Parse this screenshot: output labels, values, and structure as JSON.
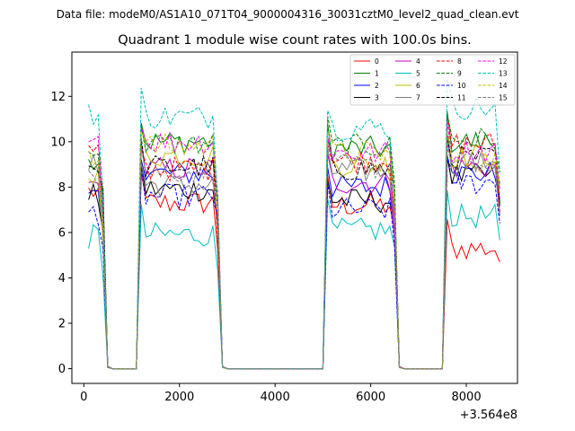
{
  "suptitle": "Data file: modeM0/AS1A10_071T04_9000004316_30031cztM0_level2_quad_clean.evt",
  "chart_data": {
    "type": "line",
    "title": "Quadrant 1 module wise count rates with 100.0s bins.",
    "xlabel": "",
    "ylabel": "",
    "x_offset_label": "+3.564e8",
    "xlim": [
      -250,
      9070
    ],
    "ylim": [
      -0.65,
      13.95
    ],
    "xticks": [
      0,
      2000,
      4000,
      6000,
      8000
    ],
    "xtick_labels": [
      "0",
      "2000",
      "4000",
      "6000",
      "8000"
    ],
    "yticks": [
      0,
      2,
      4,
      6,
      8,
      10,
      12
    ],
    "ytick_labels": [
      "0",
      "2",
      "4",
      "6",
      "8",
      "10",
      "12"
    ],
    "legend_position": "top-right",
    "legend_columns": 4,
    "segments": [
      {
        "start": 100,
        "end": 400,
        "drop": 500,
        "gap_end": 1100
      },
      {
        "start": 1200,
        "end": 2800,
        "drop": 2900,
        "gap_end": 5000
      },
      {
        "start": 5100,
        "end": 6500,
        "drop": 6600,
        "gap_end": 7500
      },
      {
        "start": 7600,
        "end": 8700,
        "drop": null,
        "gap_end": null
      }
    ],
    "series": [
      {
        "name": "0",
        "color": "#ff0000",
        "dash": "solid",
        "levels": [
          7.8,
          7.3,
          7.2,
          5.3
        ]
      },
      {
        "name": "1",
        "color": "#008000",
        "dash": "solid",
        "levels": [
          9.3,
          10.0,
          9.7,
          10.0
        ]
      },
      {
        "name": "2",
        "color": "#0000ff",
        "dash": "solid",
        "levels": [
          7.5,
          8.6,
          8.0,
          8.6
        ]
      },
      {
        "name": "3",
        "color": "#000000",
        "dash": "solid",
        "levels": [
          7.6,
          7.9,
          7.4,
          8.5
        ]
      },
      {
        "name": "4",
        "color": "#bf00bf",
        "dash": "solid",
        "levels": [
          8.1,
          8.8,
          8.2,
          8.9
        ]
      },
      {
        "name": "5",
        "color": "#00bfbf",
        "dash": "solid",
        "levels": [
          5.8,
          5.9,
          6.1,
          6.7
        ]
      },
      {
        "name": "6",
        "color": "#bfbf00",
        "dash": "solid",
        "levels": [
          8.5,
          9.4,
          9.0,
          9.4
        ]
      },
      {
        "name": "7",
        "color": "#808080",
        "dash": "solid",
        "levels": [
          8.9,
          8.1,
          8.7,
          9.0
        ]
      },
      {
        "name": "8",
        "color": "#ff0000",
        "dash": "dashed",
        "levels": [
          9.6,
          8.8,
          9.2,
          9.9
        ]
      },
      {
        "name": "9",
        "color": "#008000",
        "dash": "dashed",
        "levels": [
          9.4,
          9.9,
          9.8,
          10.1
        ]
      },
      {
        "name": "10",
        "color": "#0000ff",
        "dash": "dashed",
        "levels": [
          6.9,
          7.6,
          7.0,
          8.2
        ]
      },
      {
        "name": "11",
        "color": "#000000",
        "dash": "dashed",
        "levels": [
          9.0,
          8.9,
          8.8,
          9.3
        ]
      },
      {
        "name": "12",
        "color": "#ff00ff",
        "dash": "dashed",
        "levels": [
          9.8,
          10.0,
          9.5,
          9.6
        ]
      },
      {
        "name": "13",
        "color": "#00bfbf",
        "dash": "dashed",
        "levels": [
          11.2,
          11.1,
          10.6,
          11.5
        ]
      },
      {
        "name": "14",
        "color": "#bfbf00",
        "dash": "dashed",
        "levels": [
          9.1,
          9.8,
          9.5,
          9.2
        ]
      },
      {
        "name": "15",
        "color": "#808080",
        "dash": "dashed",
        "levels": [
          8.6,
          8.7,
          8.9,
          9.0
        ]
      }
    ]
  }
}
